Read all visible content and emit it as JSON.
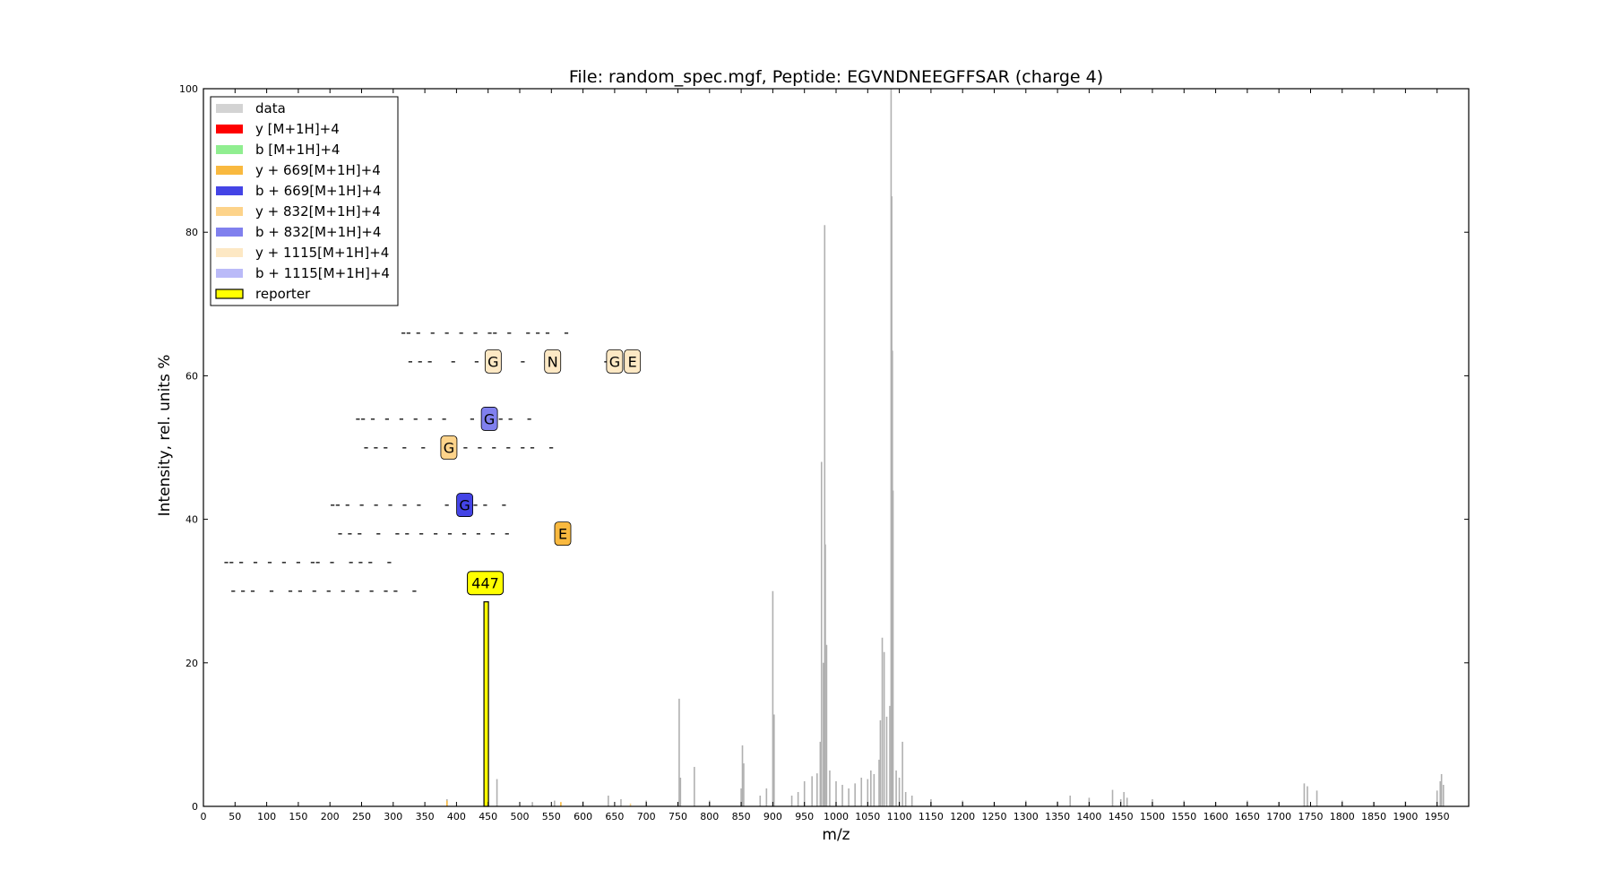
{
  "chart_data": {
    "type": "bar",
    "title": "File: random_spec.mgf, Peptide: EGVNDNEEGFFSAR (charge 4)",
    "xlabel": "m/z",
    "ylabel": "Intensity, rel. units %",
    "xlim": [
      0,
      2000
    ],
    "ylim": [
      0,
      100
    ],
    "x_ticks": [
      0,
      50,
      100,
      150,
      200,
      250,
      300,
      350,
      400,
      450,
      500,
      550,
      600,
      650,
      700,
      750,
      800,
      850,
      900,
      950,
      1000,
      1050,
      1100,
      1150,
      1200,
      1250,
      1300,
      1350,
      1400,
      1450,
      1500,
      1550,
      1600,
      1650,
      1700,
      1750,
      1800,
      1850,
      1900,
      1950
    ],
    "y_ticks": [
      0,
      20,
      40,
      60,
      80,
      100
    ],
    "grid": false,
    "legend_placement": "top-left",
    "legend": [
      {
        "label": "data",
        "color": "#d3d3d3"
      },
      {
        "label": "y [M+1H]+4",
        "color": "#ff0000"
      },
      {
        "label": "b [M+1H]+4",
        "color": "#90ee90"
      },
      {
        "label": "y + 669[M+1H]+4",
        "color": "#f9b93f"
      },
      {
        "label": "b + 669[M+1H]+4",
        "color": "#4444e6"
      },
      {
        "label": "y + 832[M+1H]+4",
        "color": "#fdd38a"
      },
      {
        "label": "b + 832[M+1H]+4",
        "color": "#8080ee"
      },
      {
        "label": "y + 1115[M+1H]+4",
        "color": "#fde8c4"
      },
      {
        "label": "b + 1115[M+1H]+4",
        "color": "#babaf8"
      },
      {
        "label": "reporter",
        "color": "#ffff00"
      }
    ],
    "series": [
      {
        "name": "data",
        "color": "#b0b0b0",
        "points": [
          [
            385,
            1.0
          ],
          [
            450,
            1.5
          ],
          [
            464,
            3.8
          ],
          [
            520,
            0.6
          ],
          [
            555,
            0.8
          ],
          [
            600,
            0.7
          ],
          [
            640,
            1.5
          ],
          [
            660,
            1.0
          ],
          [
            700,
            0.8
          ],
          [
            752,
            15.0
          ],
          [
            754,
            4.0
          ],
          [
            776,
            5.5
          ],
          [
            800,
            0.8
          ],
          [
            850,
            2.5
          ],
          [
            852,
            8.5
          ],
          [
            854,
            6.0
          ],
          [
            880,
            1.5
          ],
          [
            890,
            2.5
          ],
          [
            900,
            30.0
          ],
          [
            902,
            12.8
          ],
          [
            930,
            1.5
          ],
          [
            940,
            2.0
          ],
          [
            950,
            3.5
          ],
          [
            962,
            4.2
          ],
          [
            970,
            4.6
          ],
          [
            975,
            9.0
          ],
          [
            977,
            48.0
          ],
          [
            980,
            20.0
          ],
          [
            982,
            81.0
          ],
          [
            983,
            36.5
          ],
          [
            985,
            22.5
          ],
          [
            990,
            5.0
          ],
          [
            1000,
            3.5
          ],
          [
            1010,
            3.0
          ],
          [
            1020,
            2.5
          ],
          [
            1030,
            3.2
          ],
          [
            1040,
            4.0
          ],
          [
            1050,
            3.8
          ],
          [
            1055,
            5.0
          ],
          [
            1060,
            4.5
          ],
          [
            1068,
            6.5
          ],
          [
            1070,
            12.0
          ],
          [
            1073,
            23.5
          ],
          [
            1076,
            21.5
          ],
          [
            1080,
            12.5
          ],
          [
            1085,
            14.0
          ],
          [
            1087,
            100
          ],
          [
            1088,
            85.0
          ],
          [
            1089,
            63.5
          ],
          [
            1090,
            44.0
          ],
          [
            1095,
            5.0
          ],
          [
            1100,
            4.0
          ],
          [
            1105,
            9.0
          ],
          [
            1110,
            2.0
          ],
          [
            1120,
            1.5
          ],
          [
            1150,
            1.0
          ],
          [
            1200,
            0.8
          ],
          [
            1250,
            0.6
          ],
          [
            1300,
            0.8
          ],
          [
            1350,
            0.7
          ],
          [
            1370,
            1.5
          ],
          [
            1400,
            1.2
          ],
          [
            1437,
            2.3
          ],
          [
            1450,
            1.0
          ],
          [
            1455,
            2.0
          ],
          [
            1460,
            1.2
          ],
          [
            1500,
            1.0
          ],
          [
            1550,
            0.8
          ],
          [
            1600,
            0.6
          ],
          [
            1650,
            0.8
          ],
          [
            1700,
            0.6
          ],
          [
            1740,
            3.2
          ],
          [
            1745,
            2.8
          ],
          [
            1760,
            2.2
          ],
          [
            1800,
            0.8
          ],
          [
            1850,
            0.6
          ],
          [
            1900,
            0.7
          ],
          [
            1950,
            2.2
          ],
          [
            1955,
            3.5
          ],
          [
            1957,
            4.5
          ],
          [
            1960,
            3.0
          ]
        ]
      },
      {
        "name": "y + 669[M+1H]+4",
        "color": "#f9b93f",
        "points": [
          [
            385,
            0.8
          ],
          [
            565,
            0.6
          ]
        ]
      },
      {
        "name": "y + 832[M+1H]+4",
        "color": "#fdd38a",
        "points": [
          [
            675,
            0.4
          ]
        ]
      },
      {
        "name": "reporter",
        "color": "#ffff00",
        "points": [
          [
            447,
            28.5
          ]
        ]
      }
    ],
    "reporter_label": {
      "text": "447",
      "x": 447,
      "y": 31
    },
    "ion_ladders": [
      {
        "series": "y + 1115[M+1H]+4",
        "y": 66,
        "text": "-- -  -  -  -  -  --  -   - - -   -",
        "start": 312,
        "labels": []
      },
      {
        "series": "b + 1115[M+1H]+4",
        "y": 62,
        "text": "- - -    -    -         -    -            -    -",
        "start": 323,
        "labels": [
          {
            "text": "G",
            "x": 458,
            "color": "#fde8c4"
          },
          {
            "text": "N",
            "x": 552,
            "color": "#fde8c4"
          },
          {
            "text": "G",
            "x": 650,
            "color": "#fde8c4"
          },
          {
            "text": "E",
            "x": 678,
            "color": "#fde8c4"
          }
        ]
      },
      {
        "series": "b + 832[M+1H]+4",
        "y": 54,
        "text": "-- -  -  -  -  -  -     -   - - -   -",
        "start": 240,
        "labels": [
          {
            "text": "G",
            "x": 452,
            "color": "#8080ee"
          }
        ]
      },
      {
        "series": "y + 832[M+1H]+4",
        "y": 50,
        "text": "- - -   -   -     -  -  -  -  -  - -   -",
        "start": 253,
        "labels": [
          {
            "text": "G",
            "x": 388,
            "color": "#fdd38a"
          }
        ]
      },
      {
        "series": "b + 669[M+1H]+4",
        "y": 42,
        "text": "-- -  -  -  -  -  -     -   - - -   -",
        "start": 200,
        "labels": [
          {
            "text": "G",
            "x": 413,
            "color": "#4444e6"
          }
        ]
      },
      {
        "series": "y + 669[M+1H]+4",
        "y": 38,
        "text": "- - -   -   - -  -  -  -  -  -  -  -",
        "start": 212,
        "labels": [
          {
            "text": "E",
            "x": 568,
            "color": "#f9b93f"
          }
        ]
      },
      {
        "series": "y [M+1H]+4",
        "y": 34,
        "text": "-- -  -  -  -  -  --  -   - - -   -",
        "start": 32,
        "labels": []
      },
      {
        "series": "b [M+1H]+4",
        "y": 30,
        "text": "- - -   -   - -  -  -  -  -  -  - -   -",
        "start": 43,
        "labels": []
      }
    ]
  }
}
